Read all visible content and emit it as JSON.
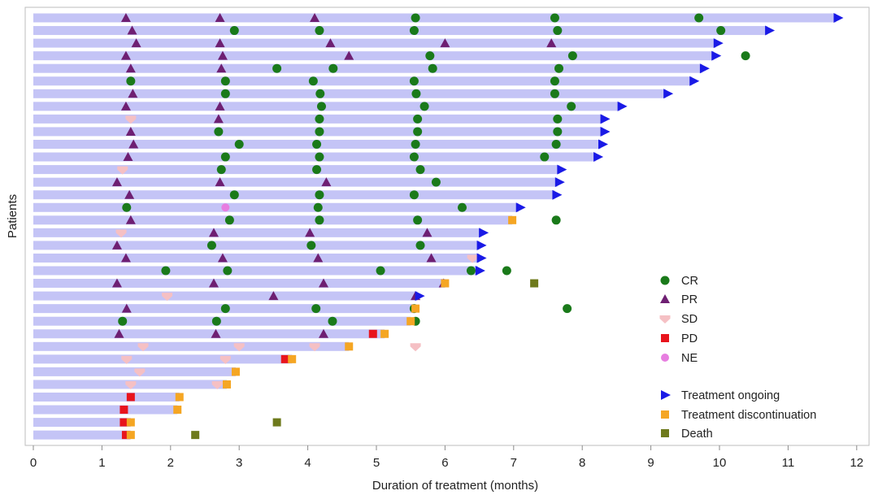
{
  "chart_data": {
    "type": "swimmer",
    "title": "",
    "xlabel": "Duration of treatment (months)",
    "ylabel": "Patients",
    "xlim": [
      0,
      12.1
    ],
    "x_ticks": [
      "0",
      "1",
      "2",
      "3",
      "4",
      "5",
      "6",
      "7",
      "8",
      "9",
      "10",
      "11",
      "12"
    ],
    "grid": false,
    "legend_position": "right",
    "colors": {
      "bar": "#c4c4f6",
      "CR": "#1a7a1a",
      "PR": "#6e1f72",
      "SD": "#f5c0c4",
      "PD": "#e8141c",
      "NE": "#e77ee0",
      "ongoing": "#1a1ae6",
      "discontinuation": "#f5a623",
      "death": "#6e7a1c"
    },
    "legend": {
      "CR": "CR",
      "PR": "PR",
      "SD": "SD",
      "PD": "PD",
      "NE": "NE",
      "ongoing": "Treatment ongoing",
      "discontinuation": "Treatment discontinuation",
      "death": "Death"
    },
    "patients": [
      {
        "duration": 11.7,
        "responses": [
          [
            "PR",
            1.35
          ],
          [
            "PR",
            2.72
          ],
          [
            "PR",
            4.1
          ],
          [
            "CR",
            5.57
          ],
          [
            "CR",
            7.6
          ],
          [
            "CR",
            9.7
          ]
        ],
        "ongoing": true,
        "discontinuation": null,
        "death": null
      },
      {
        "duration": 10.7,
        "responses": [
          [
            "PR",
            1.44
          ],
          [
            "CR",
            2.93
          ],
          [
            "CR",
            4.17
          ],
          [
            "CR",
            5.55
          ],
          [
            "CR",
            7.64
          ],
          [
            "CR",
            10.02
          ]
        ],
        "ongoing": true,
        "discontinuation": null,
        "death": null
      },
      {
        "duration": 9.95,
        "responses": [
          [
            "PR",
            1.5
          ],
          [
            "PR",
            2.72
          ],
          [
            "PR",
            4.33
          ],
          [
            "PR",
            6.0
          ],
          [
            "PR",
            7.55
          ]
        ],
        "ongoing": true,
        "discontinuation": null,
        "death": null
      },
      {
        "duration": 9.92,
        "responses": [
          [
            "PR",
            1.35
          ],
          [
            "PR",
            2.76
          ],
          [
            "PR",
            4.6
          ],
          [
            "CR",
            5.78
          ],
          [
            "CR",
            7.86
          ],
          [
            "CR",
            10.38
          ]
        ],
        "ongoing": true,
        "discontinuation": null,
        "death": null
      },
      {
        "duration": 9.75,
        "responses": [
          [
            "PR",
            1.42
          ],
          [
            "PR",
            2.74
          ],
          [
            "CR",
            3.55
          ],
          [
            "CR",
            4.37
          ],
          [
            "CR",
            5.82
          ],
          [
            "CR",
            7.66
          ]
        ],
        "ongoing": true,
        "discontinuation": null,
        "death": null
      },
      {
        "duration": 9.6,
        "responses": [
          [
            "CR",
            1.42
          ],
          [
            "CR",
            2.8
          ],
          [
            "CR",
            4.08
          ],
          [
            "CR",
            5.55
          ],
          [
            "CR",
            7.6
          ]
        ],
        "ongoing": true,
        "discontinuation": null,
        "death": null
      },
      {
        "duration": 9.22,
        "responses": [
          [
            "PR",
            1.45
          ],
          [
            "CR",
            2.8
          ],
          [
            "CR",
            4.18
          ],
          [
            "CR",
            5.58
          ],
          [
            "CR",
            7.6
          ]
        ],
        "ongoing": true,
        "discontinuation": null,
        "death": null
      },
      {
        "duration": 8.55,
        "responses": [
          [
            "PR",
            1.35
          ],
          [
            "PR",
            2.72
          ],
          [
            "CR",
            4.2
          ],
          [
            "CR",
            5.7
          ],
          [
            "CR",
            7.84
          ]
        ],
        "ongoing": true,
        "discontinuation": null,
        "death": null
      },
      {
        "duration": 8.3,
        "responses": [
          [
            "SD",
            1.42
          ],
          [
            "PR",
            2.7
          ],
          [
            "CR",
            4.17
          ],
          [
            "CR",
            5.6
          ],
          [
            "CR",
            7.64
          ]
        ],
        "ongoing": true,
        "discontinuation": null,
        "death": null
      },
      {
        "duration": 8.3,
        "responses": [
          [
            "PR",
            1.42
          ],
          [
            "CR",
            2.7
          ],
          [
            "CR",
            4.17
          ],
          [
            "CR",
            5.6
          ],
          [
            "CR",
            7.64
          ]
        ],
        "ongoing": true,
        "discontinuation": null,
        "death": null
      },
      {
        "duration": 8.27,
        "responses": [
          [
            "PR",
            1.46
          ],
          [
            "CR",
            3.0
          ],
          [
            "CR",
            4.13
          ],
          [
            "CR",
            5.57
          ],
          [
            "CR",
            7.62
          ]
        ],
        "ongoing": true,
        "discontinuation": null,
        "death": null
      },
      {
        "duration": 8.2,
        "responses": [
          [
            "PR",
            1.38
          ],
          [
            "CR",
            2.8
          ],
          [
            "CR",
            4.17
          ],
          [
            "CR",
            5.55
          ],
          [
            "CR",
            7.45
          ]
        ],
        "ongoing": true,
        "discontinuation": null,
        "death": null
      },
      {
        "duration": 7.67,
        "responses": [
          [
            "SD",
            1.3
          ],
          [
            "CR",
            2.74
          ],
          [
            "CR",
            4.13
          ],
          [
            "CR",
            5.64
          ]
        ],
        "ongoing": true,
        "discontinuation": null,
        "death": null
      },
      {
        "duration": 7.64,
        "responses": [
          [
            "PR",
            1.22
          ],
          [
            "PR",
            2.72
          ],
          [
            "PR",
            4.27
          ],
          [
            "CR",
            5.87
          ]
        ],
        "ongoing": true,
        "discontinuation": null,
        "death": null
      },
      {
        "duration": 7.6,
        "responses": [
          [
            "PR",
            1.4
          ],
          [
            "CR",
            2.93
          ],
          [
            "CR",
            4.17
          ],
          [
            "CR",
            5.55
          ]
        ],
        "ongoing": true,
        "discontinuation": null,
        "death": null
      },
      {
        "duration": 7.07,
        "responses": [
          [
            "CR",
            1.36
          ],
          [
            "NE",
            2.8
          ],
          [
            "CR",
            4.15
          ],
          [
            "CR",
            6.25
          ]
        ],
        "ongoing": true,
        "discontinuation": null,
        "death": null
      },
      {
        "duration": 6.98,
        "responses": [
          [
            "PR",
            1.42
          ],
          [
            "CR",
            2.86
          ],
          [
            "CR",
            4.17
          ],
          [
            "CR",
            5.6
          ],
          [
            "CR",
            7.62
          ]
        ],
        "ongoing": false,
        "discontinuation": 6.98,
        "death": null
      },
      {
        "duration": 6.53,
        "responses": [
          [
            "SD",
            1.28
          ],
          [
            "PR",
            2.63
          ],
          [
            "PR",
            4.03
          ],
          [
            "PR",
            5.74
          ]
        ],
        "ongoing": true,
        "discontinuation": null,
        "death": null
      },
      {
        "duration": 6.5,
        "responses": [
          [
            "PR",
            1.22
          ],
          [
            "CR",
            2.6
          ],
          [
            "CR",
            4.05
          ],
          [
            "CR",
            5.64
          ]
        ],
        "ongoing": true,
        "discontinuation": null,
        "death": null
      },
      {
        "duration": 6.5,
        "responses": [
          [
            "PR",
            1.35
          ],
          [
            "PR",
            2.76
          ],
          [
            "PR",
            4.15
          ],
          [
            "PR",
            5.8
          ],
          [
            "SD",
            6.4
          ]
        ],
        "ongoing": true,
        "discontinuation": null,
        "death": null
      },
      {
        "duration": 6.48,
        "responses": [
          [
            "CR",
            1.93
          ],
          [
            "CR",
            2.83
          ],
          [
            "CR",
            5.06
          ],
          [
            "CR",
            6.38
          ],
          [
            "CR",
            6.9
          ]
        ],
        "ongoing": true,
        "discontinuation": null,
        "death": null
      },
      {
        "duration": 6.0,
        "responses": [
          [
            "PR",
            1.22
          ],
          [
            "PR",
            2.63
          ],
          [
            "PR",
            4.23
          ],
          [
            "PR",
            5.98
          ]
        ],
        "ongoing": false,
        "discontinuation": 6.0,
        "death": 7.3
      },
      {
        "duration": 5.6,
        "responses": [
          [
            "SD",
            1.95
          ],
          [
            "PR",
            3.5
          ],
          [
            "PR",
            5.57
          ]
        ],
        "ongoing": true,
        "discontinuation": null,
        "death": null
      },
      {
        "duration": 5.57,
        "responses": [
          [
            "PR",
            1.36
          ],
          [
            "CR",
            2.8
          ],
          [
            "CR",
            4.12
          ],
          [
            "CR",
            5.55
          ],
          [
            "CR",
            7.78
          ]
        ],
        "ongoing": false,
        "discontinuation": 5.57,
        "death": null
      },
      {
        "duration": 5.5,
        "responses": [
          [
            "CR",
            1.3
          ],
          [
            "CR",
            2.67
          ],
          [
            "CR",
            4.36
          ],
          [
            "CR",
            5.57
          ]
        ],
        "ongoing": false,
        "discontinuation": 5.5,
        "death": null
      },
      {
        "duration": 5.12,
        "responses": [
          [
            "PR",
            1.25
          ],
          [
            "PR",
            2.66
          ],
          [
            "PR",
            4.23
          ],
          [
            "PD",
            4.95
          ]
        ],
        "ongoing": false,
        "discontinuation": 5.12,
        "death": null
      },
      {
        "duration": 4.6,
        "responses": [
          [
            "SD",
            1.6
          ],
          [
            "SD",
            3.0
          ],
          [
            "SD",
            4.1
          ],
          [
            "SD",
            5.57
          ]
        ],
        "ongoing": false,
        "discontinuation": 4.6,
        "death": null
      },
      {
        "duration": 3.77,
        "responses": [
          [
            "SD",
            1.36
          ],
          [
            "SD",
            2.8
          ],
          [
            "PD",
            3.67
          ]
        ],
        "ongoing": false,
        "discontinuation": 3.77,
        "death": null
      },
      {
        "duration": 2.95,
        "responses": [
          [
            "SD",
            1.55
          ]
        ],
        "ongoing": false,
        "discontinuation": 2.95,
        "death": null
      },
      {
        "duration": 2.82,
        "responses": [
          [
            "SD",
            1.42
          ],
          [
            "SD",
            2.68
          ]
        ],
        "ongoing": false,
        "discontinuation": 2.82,
        "death": null
      },
      {
        "duration": 2.13,
        "responses": [
          [
            "PD",
            1.42
          ]
        ],
        "ongoing": false,
        "discontinuation": 2.13,
        "death": null
      },
      {
        "duration": 2.1,
        "responses": [
          [
            "PD",
            1.32
          ]
        ],
        "ongoing": false,
        "discontinuation": 2.1,
        "death": null
      },
      {
        "duration": 1.42,
        "responses": [
          [
            "PD",
            1.32
          ]
        ],
        "ongoing": false,
        "discontinuation": 1.42,
        "death": 3.55
      },
      {
        "duration": 1.42,
        "responses": [
          [
            "PD",
            1.35
          ]
        ],
        "ongoing": false,
        "discontinuation": 1.42,
        "death": 2.36
      }
    ]
  }
}
